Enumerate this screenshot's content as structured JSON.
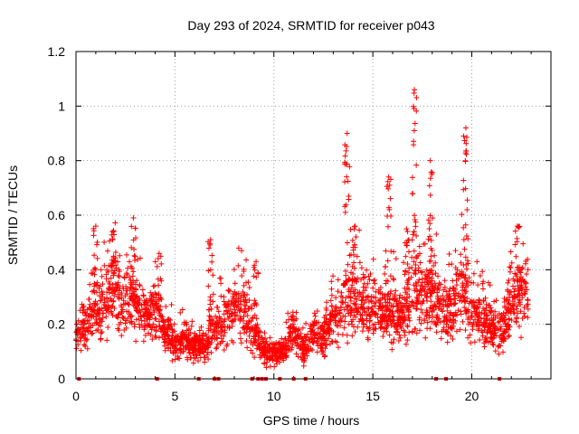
{
  "chart_data": {
    "type": "scatter",
    "title": "Day 293 of 2024, SRMTID for receiver p043",
    "xlabel": "GPS time / hours",
    "ylabel": "SRMTID / TECUs",
    "xlim": [
      0,
      24
    ],
    "ylim": [
      0,
      1.2
    ],
    "xticks": [
      0,
      5,
      10,
      15,
      20
    ],
    "xtick_labels": [
      "0",
      "5",
      "10",
      "15",
      "20"
    ],
    "yticks": [
      0,
      0.2,
      0.4,
      0.6,
      0.8,
      1.0,
      1.2
    ],
    "ytick_labels": [
      "0",
      "0.2",
      "0.4",
      "0.6",
      "0.8",
      "1",
      "1.2"
    ],
    "grid": true,
    "marker": "+",
    "color": "#ff0000",
    "series": [
      {
        "name": "p043",
        "baseline_envelope": [
          [
            0.0,
            0.17
          ],
          [
            0.5,
            0.19
          ],
          [
            1.0,
            0.25
          ],
          [
            1.5,
            0.3
          ],
          [
            2.0,
            0.31
          ],
          [
            2.5,
            0.29
          ],
          [
            3.0,
            0.29
          ],
          [
            3.5,
            0.24
          ],
          [
            4.0,
            0.26
          ],
          [
            4.5,
            0.17
          ],
          [
            5.0,
            0.13
          ],
          [
            5.5,
            0.14
          ],
          [
            6.0,
            0.12
          ],
          [
            6.5,
            0.11
          ],
          [
            7.0,
            0.19
          ],
          [
            7.5,
            0.2
          ],
          [
            8.0,
            0.26
          ],
          [
            8.5,
            0.25
          ],
          [
            9.0,
            0.17
          ],
          [
            9.5,
            0.1
          ],
          [
            10.0,
            0.09
          ],
          [
            10.5,
            0.1
          ],
          [
            11.0,
            0.18
          ],
          [
            11.5,
            0.1
          ],
          [
            12.0,
            0.17
          ],
          [
            12.5,
            0.15
          ],
          [
            13.0,
            0.21
          ],
          [
            13.5,
            0.29
          ],
          [
            14.0,
            0.3
          ],
          [
            14.5,
            0.28
          ],
          [
            15.0,
            0.24
          ],
          [
            15.5,
            0.25
          ],
          [
            16.0,
            0.26
          ],
          [
            16.5,
            0.22
          ],
          [
            17.0,
            0.31
          ],
          [
            17.5,
            0.31
          ],
          [
            18.0,
            0.3
          ],
          [
            18.5,
            0.27
          ],
          [
            19.0,
            0.24
          ],
          [
            19.5,
            0.34
          ],
          [
            20.0,
            0.27
          ],
          [
            20.5,
            0.21
          ],
          [
            21.0,
            0.18
          ],
          [
            21.5,
            0.17
          ],
          [
            22.0,
            0.27
          ],
          [
            22.5,
            0.3
          ],
          [
            22.8,
            0.29
          ]
        ],
        "peaks": [
          {
            "x": 1.0,
            "y": 0.56
          },
          {
            "x": 1.9,
            "y": 0.54
          },
          {
            "x": 2.9,
            "y": 0.59
          },
          {
            "x": 4.2,
            "y": 0.46
          },
          {
            "x": 6.8,
            "y": 0.51
          },
          {
            "x": 9.1,
            "y": 0.43
          },
          {
            "x": 13.7,
            "y": 0.9
          },
          {
            "x": 14.1,
            "y": 0.56
          },
          {
            "x": 15.8,
            "y": 0.74
          },
          {
            "x": 16.7,
            "y": 0.55
          },
          {
            "x": 17.1,
            "y": 1.06
          },
          {
            "x": 17.9,
            "y": 0.8
          },
          {
            "x": 19.7,
            "y": 0.92
          },
          {
            "x": 22.3,
            "y": 0.56
          }
        ],
        "zero_points_x": [
          0.15,
          4.1,
          6.2,
          7.0,
          7.2,
          8.9,
          9.2,
          9.4,
          9.6,
          10.3,
          11.0,
          11.6,
          18.2,
          18.7,
          21.4
        ]
      }
    ]
  }
}
